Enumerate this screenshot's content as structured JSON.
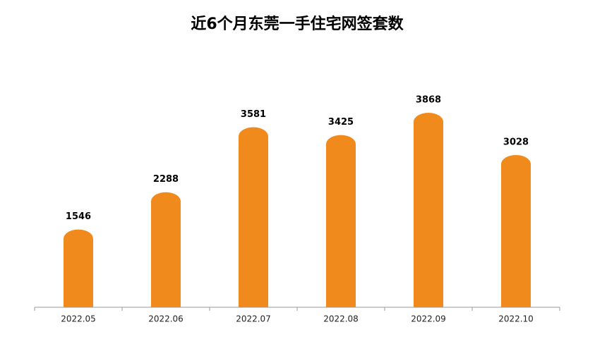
{
  "chart_data": {
    "type": "bar",
    "title": "近6个月东莞一手住宅网签套数",
    "categories": [
      "2022.05",
      "2022.06",
      "2022.07",
      "2022.08",
      "2022.09",
      "2022.10"
    ],
    "values": [
      1546,
      2288,
      3581,
      3425,
      3868,
      3028
    ],
    "color": "#f08a1d"
  }
}
